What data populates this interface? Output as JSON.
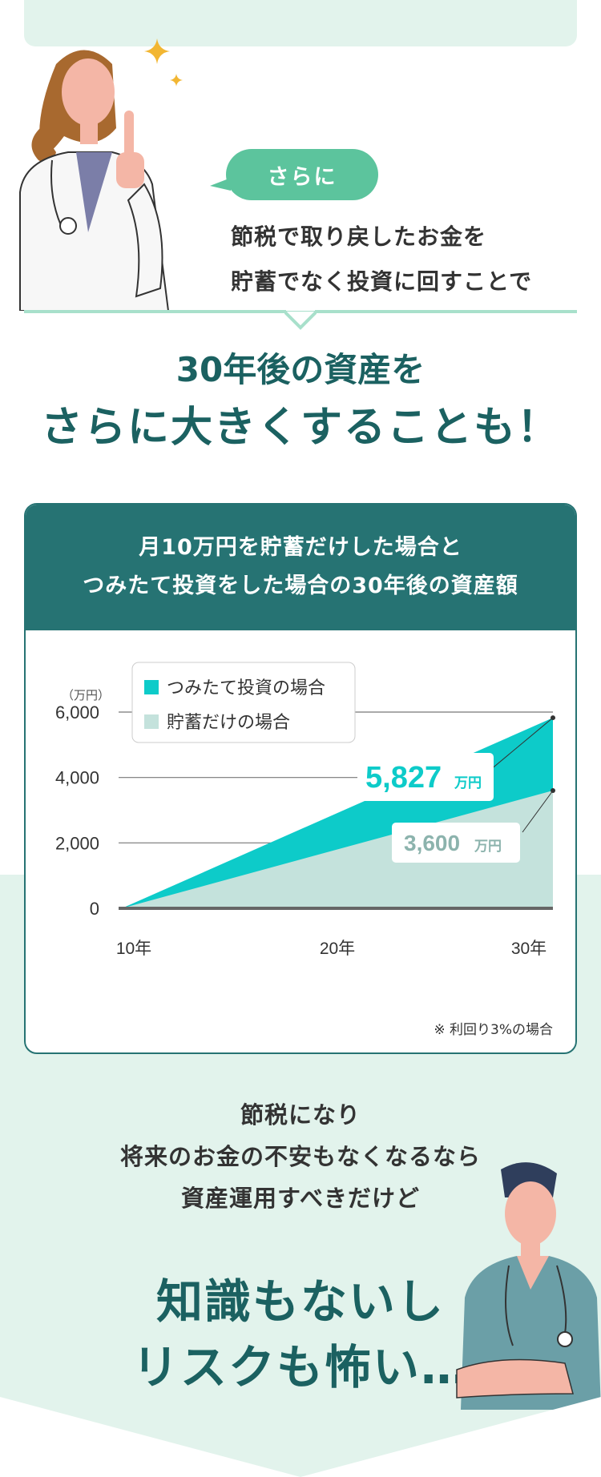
{
  "bubble": {
    "label": "さらに"
  },
  "intro": {
    "line1": "節税で取り戻したお金を",
    "line2": "貯蓄でなく投資に回すことで"
  },
  "headline": {
    "line1": "30年後の資産を",
    "line2": "さらに大きくすることも！"
  },
  "chart_card": {
    "header_line1": "月10万円を貯蓄だけした場合と",
    "header_line2": "つみたて投資をした場合の30年後の資産額",
    "note": "※ 利回り3%の場合"
  },
  "chart_data": {
    "type": "area",
    "x": [
      "10年",
      "20年",
      "30年"
    ],
    "y_unit": "（万円）",
    "ylim": [
      0,
      6000
    ],
    "y_ticks": [
      "6,000",
      "4,000",
      "2,000",
      "0"
    ],
    "legend_position": "top-left",
    "series": [
      {
        "name": "つみたて投資の場合",
        "color": "#0dcbc9",
        "end_value": 5827,
        "end_label": "5,827",
        "unit": "万円"
      },
      {
        "name": "貯蓄だけの場合",
        "color": "#c4e2dc",
        "end_value": 3600,
        "end_label": "3,600",
        "unit": "万円"
      }
    ]
  },
  "worry": {
    "line1": "節税になり",
    "line2": "将来のお金の不安もなくなるなら",
    "line3": "資産運用すべきだけど"
  },
  "big_worry": {
    "line1": "知識もないし",
    "line2": "リスクも怖い…"
  },
  "colors": {
    "primary_dark": "#267373",
    "accent_green": "#5cc49d",
    "mint_bg": "#e2f3ec",
    "teal": "#0dcbc9"
  }
}
